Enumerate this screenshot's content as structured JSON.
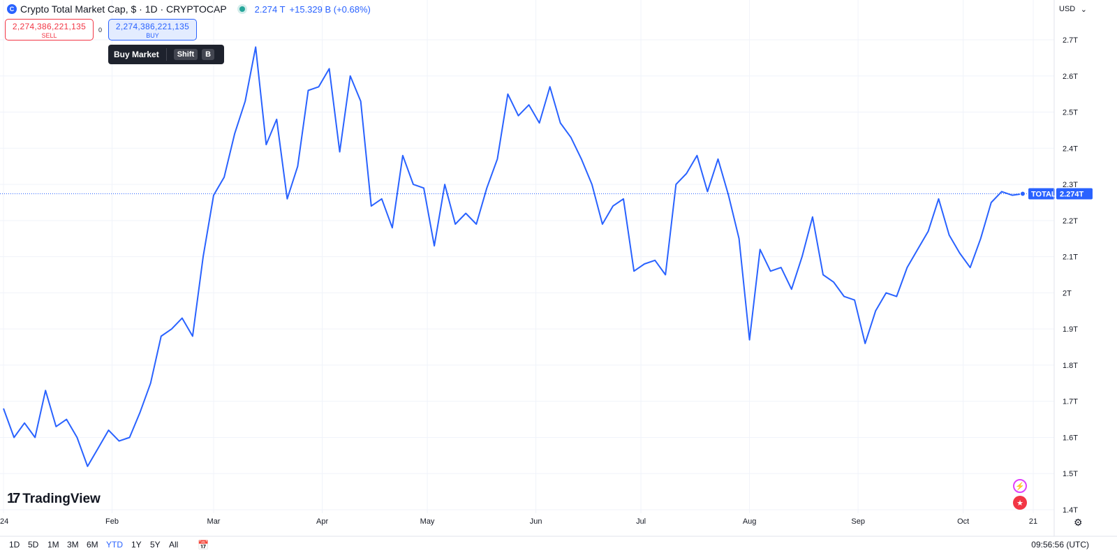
{
  "header": {
    "title": "Crypto Total Market Cap, $ · 1D · CRYPTOCAP",
    "last_value": "2.274 T",
    "change": "+15.329 B (+0.68%)",
    "currency": "USD"
  },
  "trade": {
    "sell_price": "2,274,386,221,135",
    "sell_label": "SELL",
    "spread": "0",
    "buy_price": "2,274,386,221,135",
    "buy_label": "BUY"
  },
  "tooltip": {
    "label": "Buy Market",
    "key1": "Shift",
    "key2": "B"
  },
  "price_tag": {
    "symbol": "TOTAL",
    "value": "2.274T"
  },
  "brand": "TradingView",
  "range_buttons": [
    "1D",
    "5D",
    "1M",
    "3M",
    "6M",
    "YTD",
    "1Y",
    "5Y",
    "All"
  ],
  "active_range": "YTD",
  "clock": "09:56:56 (UTC)",
  "colors": {
    "line": "#2962ff",
    "sell": "#f23645",
    "buy": "#2962ff",
    "grid": "#f0f3fa"
  },
  "chart_data": {
    "type": "line",
    "series": [
      {
        "name": "TOTAL",
        "x_index": [
          0,
          3,
          6,
          9,
          12,
          15,
          18,
          21,
          24,
          27,
          30,
          33,
          36,
          39,
          42,
          45,
          48,
          51,
          54,
          57,
          60,
          63,
          66,
          69,
          72,
          75,
          78,
          81,
          84,
          87,
          90,
          93,
          96,
          99,
          102,
          105,
          108,
          111,
          114,
          117,
          120,
          123,
          126,
          129,
          132,
          135,
          138,
          141,
          144,
          147,
          150,
          153,
          156,
          159,
          162,
          165,
          168,
          171,
          174,
          177,
          180,
          183,
          186,
          189,
          192,
          195,
          198,
          201,
          204,
          207,
          210,
          213,
          216,
          219,
          222,
          225,
          228,
          231,
          234,
          237,
          240,
          243,
          246,
          249,
          252,
          255,
          258,
          261,
          264,
          267,
          270,
          273,
          276,
          279,
          282,
          285,
          288,
          291
        ],
        "values": [
          1.68,
          1.6,
          1.64,
          1.6,
          1.73,
          1.63,
          1.65,
          1.6,
          1.52,
          1.57,
          1.62,
          1.59,
          1.6,
          1.67,
          1.75,
          1.88,
          1.9,
          1.93,
          1.88,
          2.1,
          2.27,
          2.32,
          2.44,
          2.53,
          2.68,
          2.41,
          2.48,
          2.26,
          2.35,
          2.56,
          2.57,
          2.62,
          2.39,
          2.6,
          2.53,
          2.24,
          2.26,
          2.18,
          2.38,
          2.3,
          2.29,
          2.13,
          2.3,
          2.19,
          2.22,
          2.19,
          2.29,
          2.37,
          2.55,
          2.49,
          2.52,
          2.47,
          2.57,
          2.47,
          2.43,
          2.37,
          2.3,
          2.19,
          2.24,
          2.26,
          2.06,
          2.08,
          2.09,
          2.05,
          2.3,
          2.33,
          2.38,
          2.28,
          2.37,
          2.27,
          2.15,
          1.87,
          2.12,
          2.06,
          2.07,
          2.01,
          2.1,
          2.21,
          2.05,
          2.03,
          1.99,
          1.98,
          1.86,
          1.95,
          2.0,
          1.99,
          2.07,
          2.12,
          2.17,
          2.26,
          2.16,
          2.11,
          2.07,
          2.15,
          2.25,
          2.28,
          2.27,
          2.274
        ]
      }
    ],
    "x_tick_labels": [
      "24",
      "Feb",
      "Mar",
      "Apr",
      "May",
      "Jun",
      "Jul",
      "Aug",
      "Sep",
      "Oct",
      "21"
    ],
    "x_tick_index": [
      0,
      31,
      60,
      91,
      121,
      152,
      182,
      213,
      244,
      274,
      294
    ],
    "y_ticks": [
      1.4,
      1.5,
      1.6,
      1.7,
      1.8,
      1.9,
      2.0,
      2.1,
      2.2,
      2.3,
      2.4,
      2.5,
      2.6,
      2.7
    ],
    "y_tick_labels": [
      "1.4T",
      "1.5T",
      "1.6T",
      "1.7T",
      "1.8T",
      "1.9T",
      "2T",
      "2.1T",
      "2.2T",
      "2.3T",
      "2.4T",
      "2.5T",
      "2.6T",
      "2.7T"
    ],
    "ylim": [
      1.4,
      2.75
    ],
    "x_range_index": [
      0,
      294
    ],
    "last_value": 2.274,
    "grid": true
  }
}
